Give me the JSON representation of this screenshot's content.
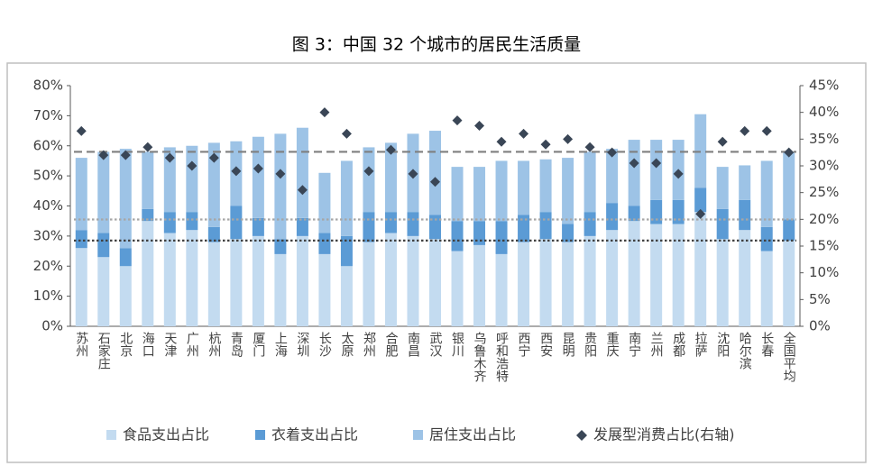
{
  "chart_data": {
    "type": "bar",
    "title": "图 3：中国 32 个城市的居民生活质量",
    "categories": [
      "苏州",
      "石家庄",
      "北京",
      "海口",
      "天津",
      "广州",
      "杭州",
      "青岛",
      "厦门",
      "上海",
      "深圳",
      "长沙",
      "太原",
      "郑州",
      "合肥",
      "南昌",
      "武汉",
      "银川",
      "乌鲁木齐",
      "呼和浩特",
      "西宁",
      "西安",
      "昆明",
      "贵阳",
      "重庆",
      "南宁",
      "兰州",
      "成都",
      "拉萨",
      "沈阳",
      "哈尔滨",
      "长春",
      "全国平均"
    ],
    "stacked": true,
    "series": [
      {
        "name": "食品支出占比",
        "type": "bar",
        "color": "#c3dbf0",
        "values": [
          26,
          23,
          20,
          35,
          31,
          32,
          28,
          29,
          30,
          24,
          30,
          24,
          20,
          28,
          31,
          30,
          29,
          25,
          27,
          24,
          28,
          29,
          28,
          30,
          32,
          35,
          34,
          34,
          38,
          29,
          32,
          25,
          28.5
        ]
      },
      {
        "name": "衣着支出占比",
        "type": "bar",
        "color": "#5b9bd5",
        "values": [
          6,
          8,
          6,
          4,
          7,
          6,
          5,
          11,
          6,
          5,
          6,
          7,
          10,
          10,
          7,
          8,
          8,
          10,
          8,
          11,
          9,
          9,
          6,
          8,
          9,
          5,
          8,
          8,
          8,
          10,
          10,
          8,
          7
        ]
      },
      {
        "name": "居住支出占比",
        "type": "bar",
        "color": "#9dc3e6",
        "values": [
          24,
          27,
          33,
          19,
          21.5,
          22,
          28,
          21.5,
          27,
          35,
          30,
          20,
          25,
          21.5,
          23,
          26,
          28,
          18,
          18,
          20,
          18,
          17.5,
          22,
          20,
          18,
          22,
          20,
          20,
          24.5,
          14,
          11.5,
          22,
          22.5
        ]
      },
      {
        "name": "发展型消费占比(右轴)",
        "type": "scatter",
        "axis": "y2",
        "color": "#3a4656",
        "values": [
          36.5,
          32,
          32,
          33.5,
          31.5,
          30,
          31.5,
          29,
          29.5,
          28.5,
          25.5,
          40,
          36,
          29,
          33,
          28.5,
          27,
          38.5,
          37.5,
          34.5,
          36,
          34,
          35,
          33.5,
          32.5,
          30.5,
          30.5,
          28.5,
          21,
          34.5,
          36.5,
          36.5,
          32.5
        ]
      }
    ],
    "reference_lines": [
      {
        "value": 58,
        "style": "dashed",
        "color": "#7f7f7f"
      },
      {
        "value": 35.5,
        "style": "dotted",
        "color": "#a6a6a6"
      },
      {
        "value": 28.5,
        "style": "dotted",
        "color": "#404040"
      }
    ],
    "ylim": [
      0,
      80
    ],
    "yticks": [
      {
        "value": 0,
        "label": "0%"
      },
      {
        "value": 10,
        "label": "10%"
      },
      {
        "value": 20,
        "label": "20%"
      },
      {
        "value": 30,
        "label": "30%"
      },
      {
        "value": 40,
        "label": "40%"
      },
      {
        "value": 50,
        "label": "50%"
      },
      {
        "value": 60,
        "label": "60%"
      },
      {
        "value": 70,
        "label": "70%"
      },
      {
        "value": 80,
        "label": "80%"
      }
    ],
    "y2lim": [
      0,
      45
    ],
    "y2ticks": [
      {
        "value": 0,
        "label": "0%"
      },
      {
        "value": 5,
        "label": "5%"
      },
      {
        "value": 10,
        "label": "10%"
      },
      {
        "value": 15,
        "label": "15%"
      },
      {
        "value": 20,
        "label": "20%"
      },
      {
        "value": 25,
        "label": "25%"
      },
      {
        "value": 30,
        "label": "30%"
      },
      {
        "value": 35,
        "label": "35%"
      },
      {
        "value": 40,
        "label": "40%"
      },
      {
        "value": 45,
        "label": "45%"
      }
    ]
  }
}
